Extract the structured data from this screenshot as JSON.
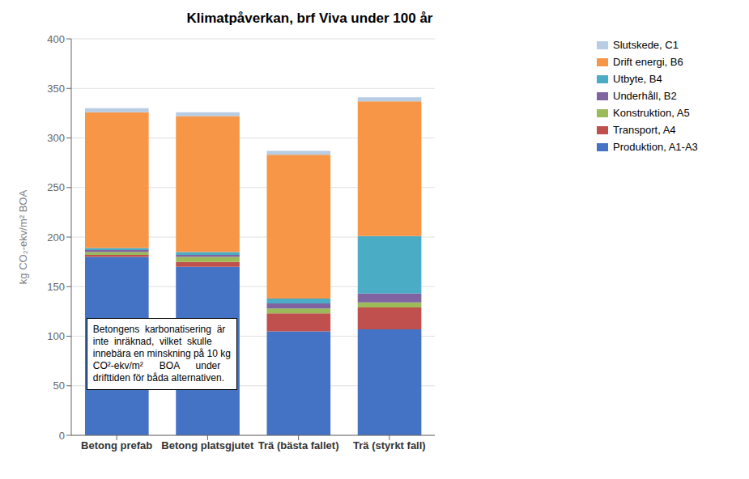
{
  "chart_data": {
    "type": "bar",
    "stacked": true,
    "title": "Klimatpåverkan, brf Viva under 100 år",
    "ylabel": "kg CO₂-ekv/m² BOA",
    "categories": [
      "Betong prefab",
      "Betong platsgjutet",
      "Trä (bästa fallet)",
      "Trä (styrkt fall)"
    ],
    "series": [
      {
        "name": "Produktion, A1-A3",
        "color": "#4472C4",
        "values": [
          180,
          170,
          105,
          107
        ]
      },
      {
        "name": "Transport, A4",
        "color": "#C0504D",
        "values": [
          2,
          5,
          18,
          22
        ]
      },
      {
        "name": "Konstruktion, A5",
        "color": "#9BBB59",
        "values": [
          3,
          5,
          5,
          5
        ]
      },
      {
        "name": "Underhåll, B2",
        "color": "#8064A2",
        "values": [
          2,
          2,
          5,
          9
        ]
      },
      {
        "name": "Utbyte, B4",
        "color": "#4BACC6",
        "values": [
          2,
          3,
          5,
          58
        ]
      },
      {
        "name": "Drift energi, B6",
        "color": "#F79646",
        "values": [
          137,
          137,
          145,
          136
        ]
      },
      {
        "name": "Slutskede, C1",
        "color": "#B8CCE4",
        "values": [
          4,
          4,
          4,
          4
        ]
      }
    ],
    "ylim": [
      0,
      400
    ],
    "yticks": [
      0,
      50,
      100,
      150,
      200,
      250,
      300,
      350,
      400
    ],
    "grid": true,
    "legend": "right",
    "annotation": "Betongens  karbonatisering  är\ninte  inräknad,  vilket  skulle\ninnebära en minskning på 10 kg\nCO²-ekv/m²      BOA      under\ndrifttiden för båda alternativen."
  }
}
